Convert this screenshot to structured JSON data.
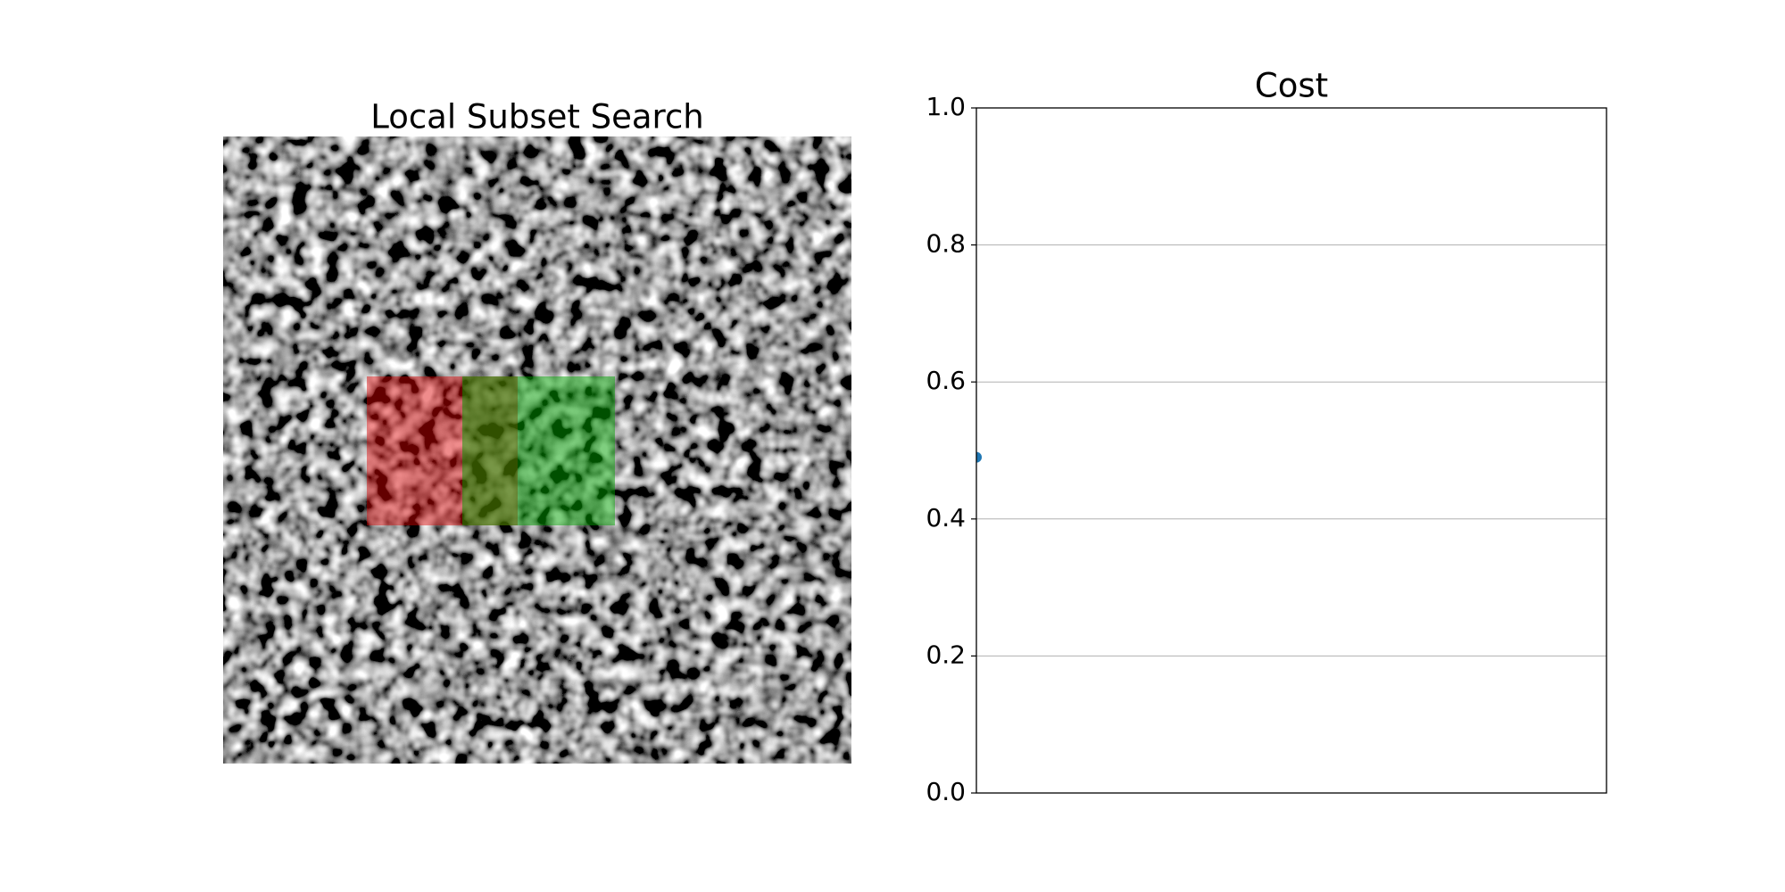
{
  "chart_data": [
    {
      "type": "image",
      "title": "Local Subset Search"
    },
    {
      "type": "scatter",
      "title": "Cost",
      "x": [
        0
      ],
      "values": [
        0.49
      ],
      "color": "#1f77b4",
      "xlim": [
        0,
        1
      ],
      "ylim": [
        0,
        1
      ],
      "yticks": [
        {
          "value": 0,
          "label": "0.0"
        },
        {
          "value": 0.2,
          "label": "0.2"
        },
        {
          "value": 0.4,
          "label": "0.4"
        },
        {
          "value": 0.6,
          "label": "0.6"
        },
        {
          "value": 0.8,
          "label": "0.8"
        },
        {
          "value": 1,
          "label": "1.0"
        }
      ],
      "grid": true
    }
  ]
}
